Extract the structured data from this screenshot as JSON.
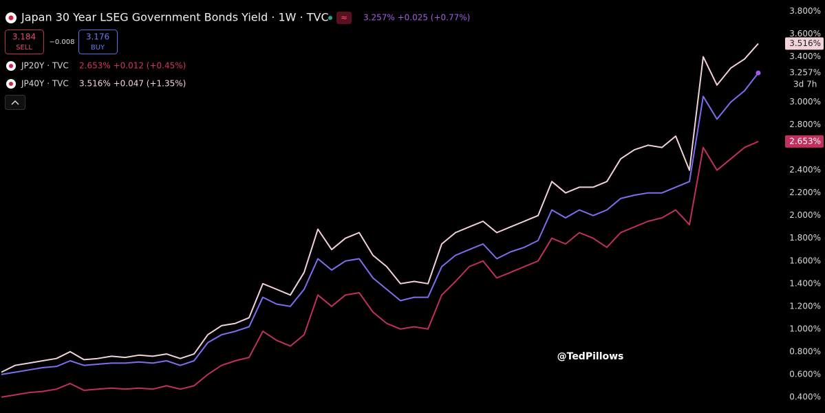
{
  "chart_data": {
    "type": "line",
    "title": "Japan 30 Year LSEG Government Bonds Yield · 1W · TVC",
    "sell": {
      "price": "3.184",
      "label": "SELL"
    },
    "spread": "−0.008",
    "buy": {
      "price": "3.176",
      "label": "BUY"
    },
    "watermark": "@TedPillows",
    "countdown": "3d 7h",
    "categories": [
      null,
      null,
      null,
      null,
      null,
      null,
      null,
      null,
      null,
      null,
      null,
      null,
      null,
      null,
      null,
      null,
      null,
      null,
      null,
      null,
      null,
      null,
      null,
      null,
      null,
      null,
      null,
      null,
      null,
      null,
      null,
      null,
      null,
      null,
      null,
      null,
      null,
      null,
      null,
      null,
      null,
      null,
      null,
      null,
      null,
      null,
      null,
      null,
      null,
      null,
      null,
      null,
      null,
      null,
      null,
      null
    ],
    "series": [
      {
        "name": "JP40Y · TVC",
        "quote": "3.516%  +0.047 (+1.35%)",
        "last_label": "3.516%",
        "color": "#f3d3da",
        "label_box": true,
        "values": [
          0.62,
          0.68,
          0.7,
          0.72,
          0.74,
          0.8,
          0.73,
          0.74,
          0.76,
          0.75,
          0.77,
          0.76,
          0.78,
          0.74,
          0.78,
          0.95,
          1.03,
          1.05,
          1.1,
          1.4,
          1.35,
          1.3,
          1.5,
          1.88,
          1.7,
          1.8,
          1.85,
          1.65,
          1.55,
          1.4,
          1.42,
          1.4,
          1.75,
          1.85,
          1.9,
          1.95,
          1.85,
          1.9,
          1.95,
          2.0,
          2.3,
          2.2,
          2.25,
          2.25,
          2.3,
          2.5,
          2.58,
          2.62,
          2.6,
          2.7,
          2.4,
          3.4,
          3.15,
          3.3,
          3.38,
          3.516
        ]
      },
      {
        "name": "Japan 30 Year LSEG Government Bonds Yield · 1W · TVC",
        "quote": "3.257%  +0.025 (+0.77%)",
        "last_label": "3.257%",
        "color": "#7d6ff0",
        "label_box": false,
        "values": [
          0.6,
          0.62,
          0.64,
          0.66,
          0.67,
          0.72,
          0.68,
          0.69,
          0.7,
          0.7,
          0.71,
          0.7,
          0.72,
          0.68,
          0.72,
          0.88,
          0.95,
          0.98,
          1.02,
          1.28,
          1.22,
          1.2,
          1.35,
          1.62,
          1.52,
          1.6,
          1.62,
          1.45,
          1.35,
          1.25,
          1.28,
          1.28,
          1.55,
          1.65,
          1.7,
          1.75,
          1.62,
          1.68,
          1.72,
          1.78,
          2.05,
          1.98,
          2.05,
          2.0,
          2.05,
          2.15,
          2.18,
          2.2,
          2.2,
          2.25,
          2.3,
          3.05,
          2.85,
          3.0,
          3.1,
          3.257
        ]
      },
      {
        "name": "JP20Y · TVC",
        "quote": "2.653%  +0.012 (+0.45%)",
        "last_label": "2.653%",
        "color": "#c2305e",
        "label_box": true,
        "values": [
          0.4,
          0.42,
          0.44,
          0.45,
          0.47,
          0.52,
          0.46,
          0.47,
          0.48,
          0.47,
          0.48,
          0.47,
          0.5,
          0.47,
          0.5,
          0.6,
          0.68,
          0.72,
          0.75,
          0.98,
          0.9,
          0.85,
          0.95,
          1.3,
          1.2,
          1.3,
          1.32,
          1.15,
          1.05,
          1.0,
          1.02,
          1.0,
          1.3,
          1.42,
          1.55,
          1.6,
          1.45,
          1.5,
          1.55,
          1.6,
          1.8,
          1.75,
          1.85,
          1.8,
          1.72,
          1.85,
          1.9,
          1.95,
          1.98,
          2.05,
          1.92,
          2.6,
          2.4,
          2.5,
          2.6,
          2.653
        ]
      }
    ],
    "ylim": [
      0.26,
      3.9
    ],
    "yticks": [
      {
        "value": 0.4,
        "label": "0.400%"
      },
      {
        "value": 0.6,
        "label": "0.600%"
      },
      {
        "value": 0.8,
        "label": "0.800%"
      },
      {
        "value": 1.0,
        "label": "1.000%"
      },
      {
        "value": 1.2,
        "label": "1.200%"
      },
      {
        "value": 1.4,
        "label": "1.400%"
      },
      {
        "value": 1.6,
        "label": "1.600%"
      },
      {
        "value": 1.8,
        "label": "1.800%"
      },
      {
        "value": 2.0,
        "label": "2.000%"
      },
      {
        "value": 2.2,
        "label": "2.200%"
      },
      {
        "value": 2.4,
        "label": "2.400%"
      },
      {
        "value": 2.8,
        "label": "2.800%"
      },
      {
        "value": 3.0,
        "label": "3.000%"
      },
      {
        "value": 3.4,
        "label": "3.400%"
      },
      {
        "value": 3.6,
        "label": "3.600%"
      },
      {
        "value": 3.8,
        "label": "3.800%"
      }
    ],
    "grid": false
  }
}
